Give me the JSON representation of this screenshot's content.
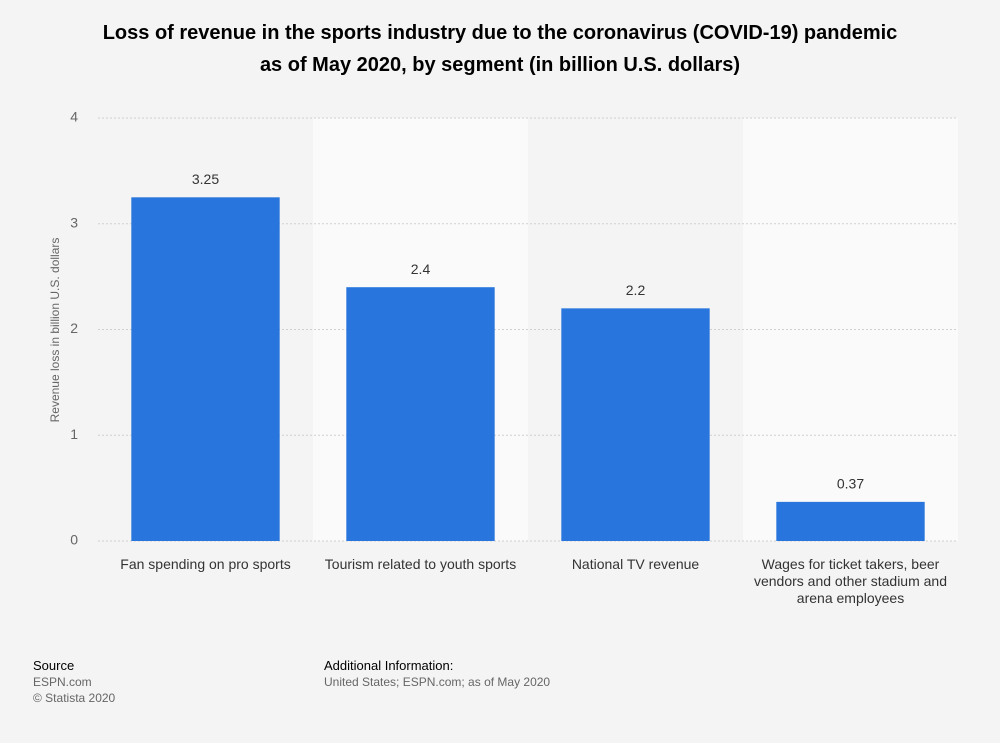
{
  "chart_data": {
    "type": "bar",
    "title": [
      "Loss of revenue in the sports industry due to the coronavirus (COVID-19) pandemic",
      "as of May 2020, by segment (in billion U.S. dollars)"
    ],
    "y_label": "Revenue loss in billion U.S. dollars",
    "categories": [
      "Fan spending on pro sports",
      "Tourism related to youth sports",
      "National TV revenue",
      "Wages for ticket takers, beer vendors and other stadium and arena employees"
    ],
    "values": [
      3.25,
      2.4,
      2.2,
      0.37
    ],
    "color": "#2876dd",
    "ylim": [
      0,
      4
    ],
    "yticks": [
      0,
      1,
      2,
      3,
      4
    ],
    "grid": true
  },
  "footer": {
    "source_title": "Source",
    "source": "ESPN.com",
    "copyright": "© Statista 2020",
    "info_title": "Additional Information:",
    "info": "United States; ESPN.com; as of May 2020"
  }
}
